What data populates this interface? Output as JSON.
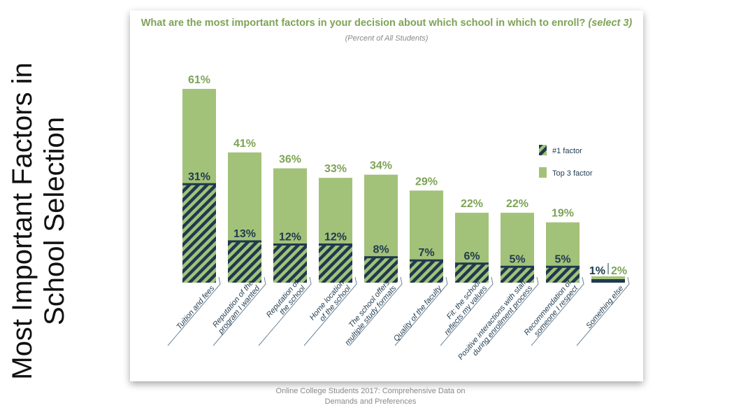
{
  "slide_title": [
    "Most Important Factors in",
    "School Selection"
  ],
  "source": [
    "Online College Students 2017: Comprehensive Data on",
    "Demands and Preferences"
  ],
  "chart_data": {
    "type": "bar",
    "title": "What are the most important factors in your decision about which school in which to enroll?",
    "title_emphasis": "(select 3)",
    "subtitle": "(Percent of All Students)",
    "categories": [
      [
        "Tuition and fees"
      ],
      [
        "Reputation of the",
        "program I wanted"
      ],
      [
        "Reputation of",
        "the school"
      ],
      [
        "Home location",
        "of the school"
      ],
      [
        "The school offers",
        "multiple study formats"
      ],
      [
        "Quality of the faculty"
      ],
      [
        "Fit: the school",
        "reflects my values"
      ],
      [
        "Positive interactions with staff",
        "during enrollment process"
      ],
      [
        "Recommendation of",
        "someone I respect"
      ],
      [
        "Something else"
      ]
    ],
    "series": [
      {
        "name": "Top 3 factor",
        "values": [
          61,
          41,
          36,
          33,
          34,
          29,
          22,
          22,
          19,
          2
        ],
        "color": "#a3c279"
      },
      {
        "name": "#1 factor",
        "values": [
          31,
          13,
          12,
          12,
          8,
          7,
          6,
          5,
          5,
          1
        ],
        "color": "#1e3a4f",
        "pattern": "hatched"
      }
    ],
    "legend": {
      "position": "right",
      "items": [
        "#1 factor",
        "Top 3 factor"
      ]
    },
    "unit": "%",
    "ylim": [
      0,
      65
    ],
    "grid": false
  }
}
